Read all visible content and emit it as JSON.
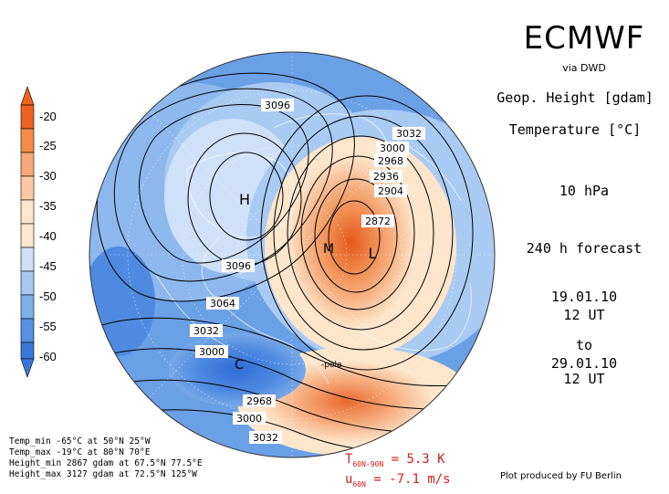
{
  "header": {
    "brand": "ECMWF",
    "via": "via DWD",
    "field1": "Geop. Height [gdam]",
    "field2": "Temperature [°C]",
    "level": "10 hPa",
    "forecast": "240 h forecast",
    "init_date": "19.01.10",
    "init_time": "12 UT",
    "to": "to",
    "valid_date": "29.01.10",
    "valid_time": "12 UT"
  },
  "colorbar": {
    "labels": [
      "-20",
      "-25",
      "-30",
      "-35",
      "-40",
      "-45",
      "-50",
      "-55",
      "-60"
    ],
    "colors": [
      "#f06020",
      "#f58a4a",
      "#f7a878",
      "#fac8a4",
      "#fde6cc",
      "#cde0f7",
      "#a6c8f0",
      "#7eaee8",
      "#5690e0",
      "#3a78d8"
    ]
  },
  "contour_labels": [
    "3096",
    "3032",
    "3000",
    "2968",
    "2936",
    "2904",
    "2872",
    "3096",
    "3064",
    "3032",
    "3000",
    "2968",
    "3000",
    "3032"
  ],
  "markers": {
    "high": "H",
    "low": "L",
    "min_mark": "M",
    "cold": "C",
    "pole": "-pole"
  },
  "stats": {
    "temp_min": "Temp_min -65°C at 50°N 25°W",
    "temp_max": "Temp_max -19°C at 80°N 70°E",
    "height_min": "Height_min 2867 gdam at 67.5°N 77.5°E",
    "height_max": "Height_max 3127 gdam at 72.5°N 125°W"
  },
  "indices": {
    "t_base": "T",
    "t_sub": "60N-90N",
    "t_value": "= 5.3 K",
    "u_base": "u",
    "u_sub": "60N",
    "u_value": "= -7.1 m/s"
  },
  "footer": {
    "plot_by": "Plot produced by FU Berlin"
  }
}
